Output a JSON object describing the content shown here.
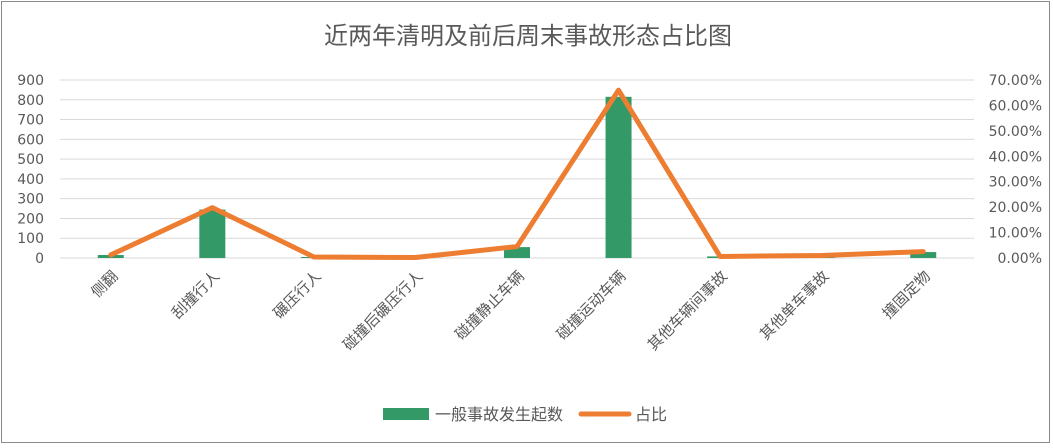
{
  "chart_data": {
    "type": "bar+line",
    "title": "近两年清明及前后周末事故形态占比图",
    "categories": [
      "侧翻",
      "刮撞行人",
      "碾压行人",
      "碰撞后碾压行人",
      "碰撞静止车辆",
      "碰撞运动车辆",
      "其他车辆间事故",
      "其他单车事故",
      "撞固定物"
    ],
    "series": [
      {
        "name": "一般事故发生起数",
        "type": "bar",
        "axis": "left",
        "color": "#339966",
        "values": [
          15,
          245,
          5,
          2,
          55,
          815,
          8,
          8,
          30
        ]
      },
      {
        "name": "占比",
        "type": "line",
        "axis": "right",
        "color": "#ED7D31",
        "values": [
          0.012,
          0.198,
          0.004,
          0.002,
          0.045,
          0.66,
          0.006,
          0.01,
          0.025
        ]
      }
    ],
    "y_left": {
      "min": 0,
      "max": 900,
      "step": 100,
      "ticks": [
        "0",
        "100",
        "200",
        "300",
        "400",
        "500",
        "600",
        "700",
        "800",
        "900"
      ]
    },
    "y_right": {
      "min": 0,
      "max": 0.7,
      "step": 0.1,
      "ticks": [
        "0.00%",
        "10.00%",
        "20.00%",
        "30.00%",
        "40.00%",
        "50.00%",
        "60.00%",
        "70.00%"
      ]
    },
    "grid": true,
    "legend": "bottom-center"
  }
}
